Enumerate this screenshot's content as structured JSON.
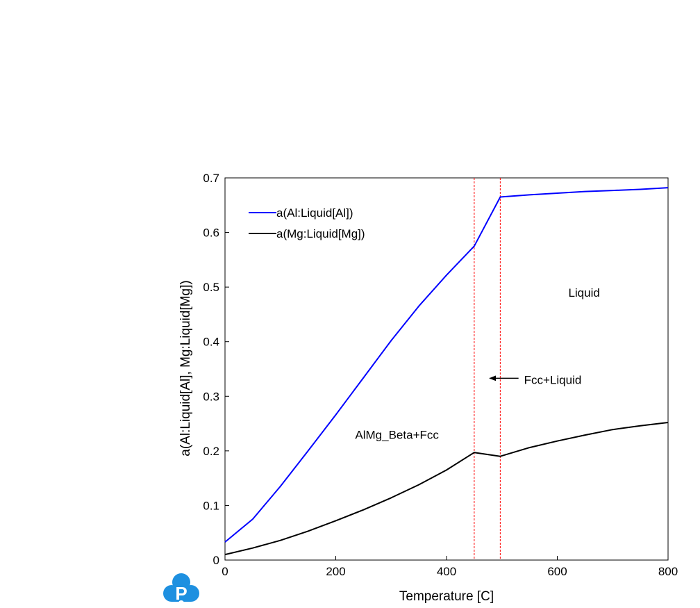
{
  "chart_data": {
    "type": "line",
    "xlabel": "Temperature [C]",
    "ylabel": "a(Al:Liquid[Al], Mg:Liquid[Mg])",
    "xlim": [
      0,
      800
    ],
    "ylim": [
      0,
      0.7
    ],
    "xticks": [
      "0",
      "200",
      "400",
      "600",
      "800"
    ],
    "yticks": [
      "0",
      "0.1",
      "0.2",
      "0.3",
      "0.4",
      "0.5",
      "0.6",
      "0.7"
    ],
    "grid": false,
    "legend_position": "top-left",
    "series": [
      {
        "name": "a(Al:Liquid[Al])",
        "color": "#0000ff",
        "x": [
          0,
          50,
          100,
          150,
          200,
          250,
          300,
          350,
          400,
          450,
          497,
          550,
          600,
          650,
          700,
          750,
          800
        ],
        "y": [
          0.033,
          0.075,
          0.135,
          0.2,
          0.266,
          0.334,
          0.402,
          0.465,
          0.522,
          0.575,
          0.665,
          0.669,
          0.672,
          0.675,
          0.677,
          0.679,
          0.682
        ]
      },
      {
        "name": "a(Mg:Liquid[Mg])",
        "color": "#000000",
        "x": [
          0,
          50,
          100,
          150,
          200,
          250,
          300,
          350,
          400,
          450,
          497,
          550,
          600,
          650,
          700,
          750,
          800
        ],
        "y": [
          0.01,
          0.022,
          0.036,
          0.053,
          0.072,
          0.092,
          0.114,
          0.138,
          0.165,
          0.197,
          0.19,
          0.206,
          0.218,
          0.229,
          0.239,
          0.246,
          0.252
        ]
      }
    ],
    "vlines": {
      "color": "#ff0000",
      "x": [
        450,
        497
      ]
    },
    "annotations": [
      {
        "text": "Liquid",
        "x": 620,
        "y": 0.49
      },
      {
        "text": "Fcc+Liquid",
        "x": 540,
        "y": 0.33
      },
      {
        "text": "AlMg_Beta+Fcc",
        "x": 235,
        "y": 0.23
      }
    ],
    "arrow": {
      "from_x": 530,
      "to_x": 478,
      "y": 0.333
    }
  },
  "logo": {
    "letter": "P",
    "color": "#1e90e0"
  }
}
